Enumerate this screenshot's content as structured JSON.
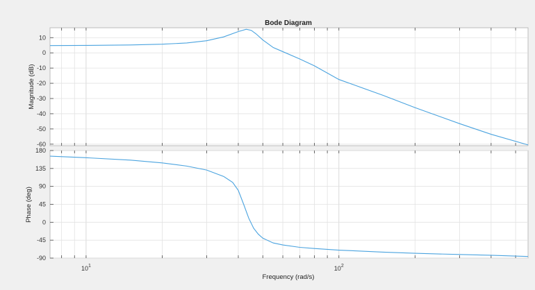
{
  "chart_data": [
    {
      "type": "line",
      "title": "Bode Diagram",
      "xlabel": "Frequency  (rad/s)",
      "ylabel": "Magnitude (dB)",
      "xscale": "log",
      "xlim": [
        7.2,
        560
      ],
      "ylim": [
        -61,
        16.5
      ],
      "yticks": [
        "10",
        "0",
        "-10",
        "-20",
        "-30",
        "-40",
        "-50",
        "-60"
      ],
      "grid": true,
      "series": [
        {
          "color": "#4aa3df",
          "x": [
            7.2,
            10,
            15,
            20,
            25,
            30,
            35,
            40,
            43,
            45,
            47,
            50,
            55,
            60,
            70,
            80,
            100,
            150,
            200,
            300,
            400,
            560
          ],
          "y": [
            4.8,
            4.9,
            5.2,
            5.7,
            6.5,
            8.0,
            10.5,
            14.0,
            15.5,
            14.8,
            12.5,
            8.5,
            3.5,
            0.8,
            -4.0,
            -8.5,
            -17.5,
            -28.0,
            -36.0,
            -46.5,
            -53.5,
            -60.5
          ]
        }
      ]
    },
    {
      "type": "line",
      "xlabel": "Frequency  (rad/s)",
      "ylabel": "Phase (deg)",
      "xscale": "log",
      "xlim": [
        7.2,
        560
      ],
      "ylim": [
        -90,
        180
      ],
      "yticks": [
        "180",
        "135",
        "90",
        "45",
        "0",
        "-45",
        "-90"
      ],
      "xticks": [
        {
          "base": "10",
          "exp": "1"
        },
        {
          "base": "10",
          "exp": "2"
        }
      ],
      "grid": true,
      "series": [
        {
          "color": "#4aa3df",
          "x": [
            7.2,
            10,
            15,
            20,
            25,
            30,
            35,
            38,
            40,
            42,
            44,
            46,
            48,
            50,
            55,
            60,
            70,
            80,
            100,
            150,
            200,
            300,
            400,
            560
          ],
          "y": [
            166,
            162,
            156,
            149,
            141,
            131,
            115,
            100,
            80,
            45,
            10,
            -15,
            -30,
            -40,
            -52,
            -57,
            -63,
            -66,
            -70,
            -75,
            -78,
            -81,
            -83,
            -86
          ]
        }
      ]
    }
  ]
}
